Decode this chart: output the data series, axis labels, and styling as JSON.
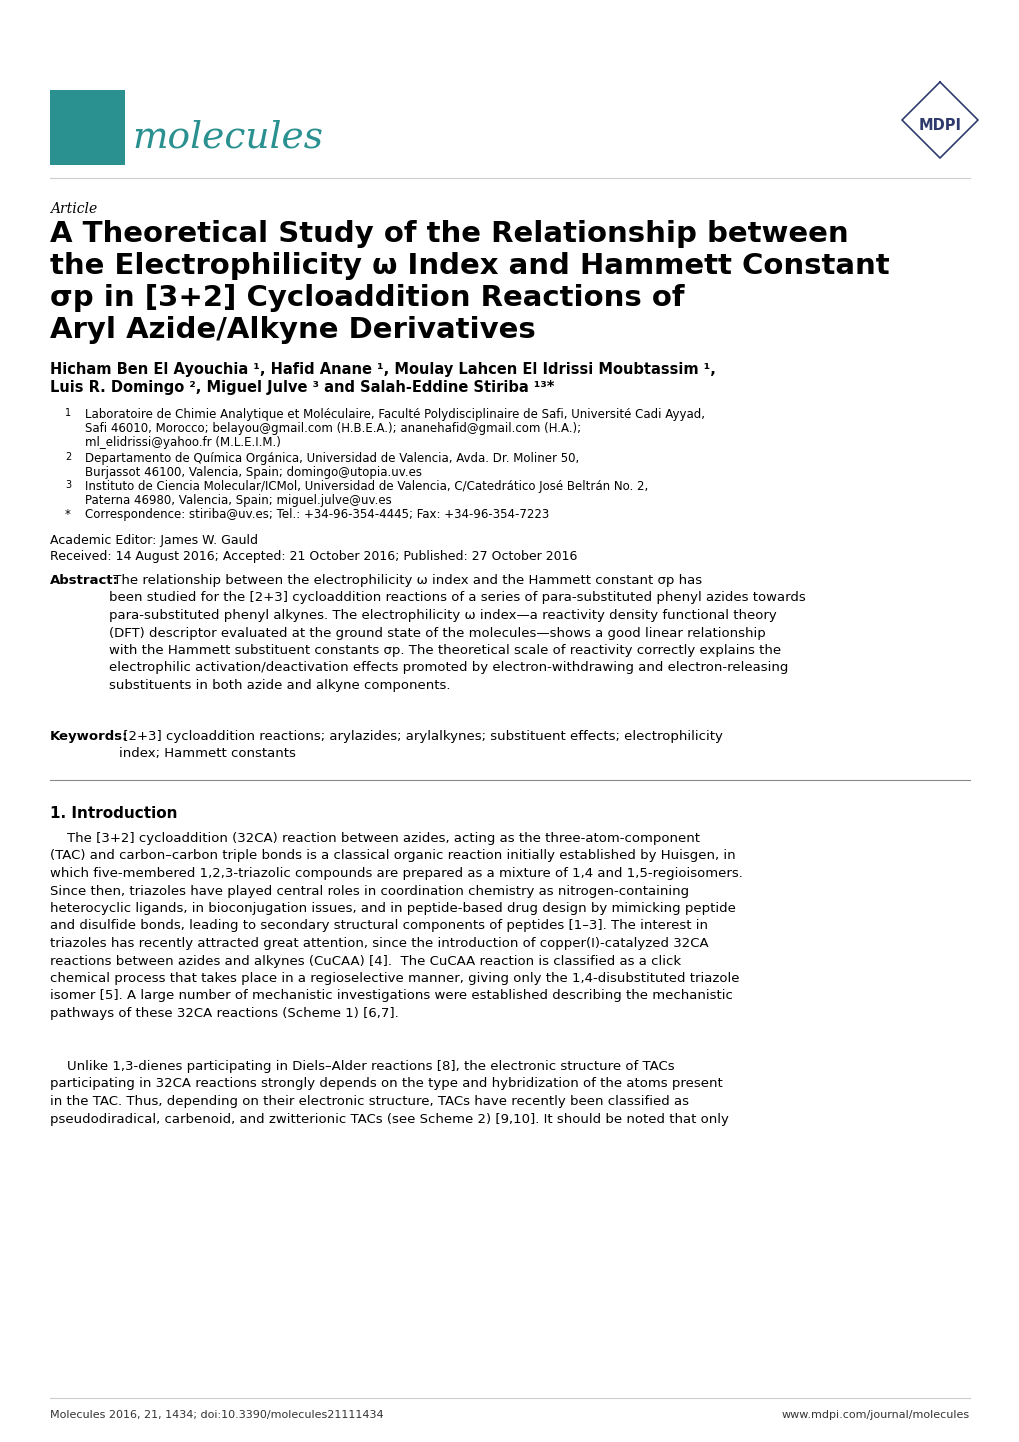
{
  "background_color": "#ffffff",
  "header_logo_color": "#2a9090",
  "mdpi_color": "#2d3a6b",
  "article_label": "Article",
  "title_line1": "A Theoretical Study of the Relationship between",
  "title_line2": "the Electrophilicity ω Index and Hammett Constant",
  "title_line3": "σp in [3+2] Cycloaddition Reactions of",
  "title_line4": "Aryl Azide/Alkyne Derivatives",
  "authors_line1": "Hicham Ben El Ayouchia ¹, Hafid Anane ¹, Moulay Lahcen El Idrissi Moubtassim ¹,",
  "authors_line2": "Luis R. Domingo ², Miguel Julve ³ and Salah-Eddine Stiriba ¹³*",
  "aff1_num": "1",
  "aff1_text": "Laboratoire de Chimie Analytique et Moléculaire, Faculté Polydisciplinaire de Safi, Université Cadi Ayyad,",
  "aff1b_text": "Safi 46010, Morocco; belayou@gmail.com (H.B.E.A.); ananehafid@gmail.com (H.A.);",
  "aff1c_text": "ml_elidrissi@yahoo.fr (M.L.E.I.M.)",
  "aff2_num": "2",
  "aff2_text": "Departamento de Química Orgánica, Universidad de Valencia, Avda. Dr. Moliner 50,",
  "aff2b_text": "Burjassot 46100, Valencia, Spain; domingo@utopia.uv.es",
  "aff3_num": "3",
  "aff3_text": "Instituto de Ciencia Molecular/ICMol, Universidad de Valencia, C/Catedrático José Beltrán No. 2,",
  "aff3b_text": "Paterna 46980, Valencia, Spain; miguel.julve@uv.es",
  "affstar_num": "*",
  "affstar_text": "Correspondence: stiriba@uv.es; Tel.: +34-96-354-4445; Fax: +34-96-354-7223",
  "editor": "Academic Editor: James W. Gauld",
  "dates": "Received: 14 August 2016; Accepted: 21 October 2016; Published: 27 October 2016",
  "abstract_bold": "Abstract:",
  "abstract_body": " The relationship between the electrophilicity ω index and the Hammett constant σp has\nbeen studied for the [2+3] cycloaddition reactions of a series of para-substituted phenyl azides towards\npara-substituted phenyl alkynes. The electrophilicity ω index—a reactivity density functional theory\n(DFT) descriptor evaluated at the ground state of the molecules—shows a good linear relationship\nwith the Hammett substituent constants σp. The theoretical scale of reactivity correctly explains the\nelectrophilic activation/deactivation effects promoted by electron-withdrawing and electron-releasing\nsubstituents in both azide and alkyne components.",
  "keywords_bold": "Keywords:",
  "keywords_body": " [2+3] cycloaddition reactions; arylazides; arylalkynes; substituent effects; electrophilicity\nindex; Hammett constants",
  "intro_heading": "1. Introduction",
  "intro_p1": "    The [3+2] cycloaddition (32CA) reaction between azides, acting as the three-atom-component\n(TAC) and carbon–carbon triple bonds is a classical organic reaction initially established by Huisgen, in\nwhich five-membered 1,2,3-triazolic compounds are prepared as a mixture of 1,4 and 1,5-regioisomers.\nSince then, triazoles have played central roles in coordination chemistry as nitrogen-containing\nheterocyclic ligands, in bioconjugation issues, and in peptide-based drug design by mimicking peptide\nand disulfide bonds, leading to secondary structural components of peptides [1–3]. The interest in\ntriazoles has recently attracted great attention, since the introduction of copper(I)-catalyzed 32CA\nreactions between azides and alkynes (CuCAA) [4].  The CuCAA reaction is classified as a click\nchemical process that takes place in a regioselective manner, giving only the 1,4-disubstituted triazole\nisomer [5]. A large number of mechanistic investigations were established describing the mechanistic\npathways of these 32CA reactions (Scheme 1) [6,7].",
  "intro_p2": "    Unlike 1,3-dienes participating in Diels–Alder reactions [8], the electronic structure of TACs\nparticipating in 32CA reactions strongly depends on the type and hybridization of the atoms present\nin the TAC. Thus, depending on their electronic structure, TACs have recently been classified as\npseudodiradical, carbenoid, and zwitterionic TACs (see Scheme 2) [9,10]. It should be noted that only",
  "footer_left": "Molecules 2016, 21, 1434; doi:10.3390/molecules21111434",
  "footer_right": "www.mdpi.com/journal/molecules"
}
